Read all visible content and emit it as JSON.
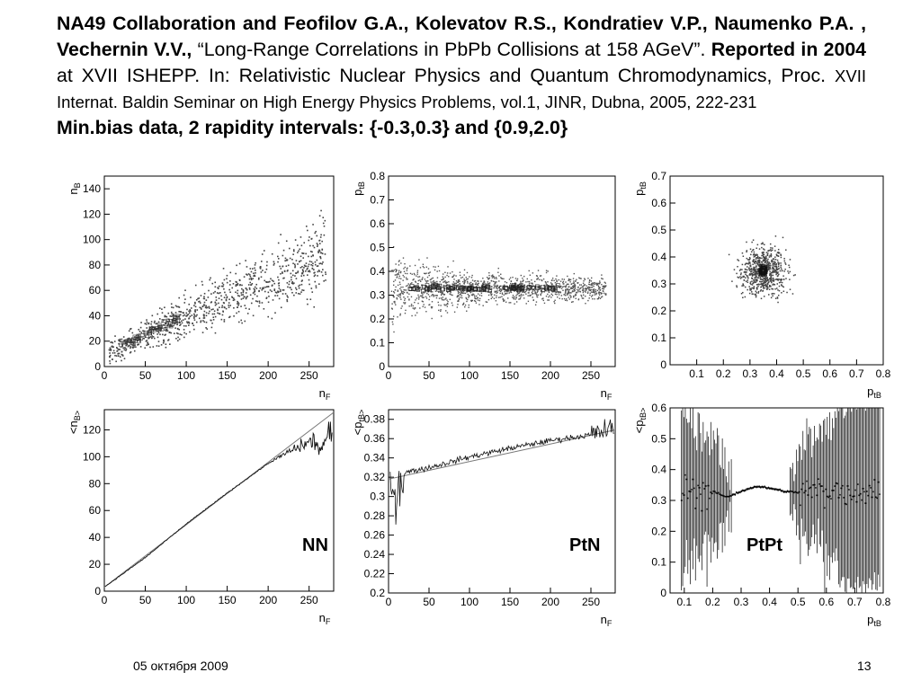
{
  "header": {
    "authors_line": "NA49 Collaboration and Feofilov G.A., Kolevatov R.S., Kondratiev V.P., Naumenko P.A. , Vechernin V.V.,",
    "title": "“Long-Range Correlations in PbPb Collisions at 158 AGeV”.",
    "reported": "Reported in 2004",
    "venue": "at XVII ISHEPP. In: Relativistic Nuclear Physics and Quantum Chromodynamics, Proc.",
    "proc_rest": "XVII Internat. Baldin Seminar on High Energy Physics Problems, vol.1, JINR, Dubna, 2005, 222-231",
    "data_line": "Min.bias data, 2 rapidity intervals: {-0.3,0.3} and {0.9,2.0}"
  },
  "footer": {
    "date": "05 октября 2009",
    "page": "13"
  },
  "panel_labels": {
    "nn": "NN",
    "ptn": "PtN",
    "ptpt": "PtPt"
  },
  "chart_data": [
    {
      "id": "c1",
      "type": "scatter",
      "xlabel": "n_F",
      "ylabel": "n_B",
      "xlim": [
        0,
        280
      ],
      "ylim": [
        0,
        150
      ],
      "xticks": [
        "0",
        "50",
        "100",
        "150",
        "200",
        "250"
      ],
      "yticks": [
        "0",
        "20",
        "40",
        "60",
        "80",
        "100",
        "120",
        "140"
      ],
      "trend": {
        "x": [
          0,
          270
        ],
        "y": [
          10,
          90
        ]
      }
    },
    {
      "id": "c2",
      "type": "scatter",
      "xlabel": "n_F",
      "ylabel": "p_tB",
      "xlim": [
        0,
        280
      ],
      "ylim": [
        0,
        0.8
      ],
      "xticks": [
        "0",
        "50",
        "100",
        "150",
        "200",
        "250"
      ],
      "yticks": [
        "0",
        "0.1",
        "0.2",
        "0.3",
        "0.4",
        "0.5",
        "0.6",
        "0.7",
        "0.8"
      ],
      "trend": {
        "x": [
          0,
          270
        ],
        "y": [
          0.33,
          0.33
        ]
      }
    },
    {
      "id": "c3",
      "type": "scatter",
      "xlabel": "p_tB",
      "ylabel": "p_tB",
      "xlim": [
        0,
        0.8
      ],
      "ylim": [
        0,
        0.7
      ],
      "xticks": [
        "0.1",
        "0.2",
        "0.3",
        "0.4",
        "0.5",
        "0.6",
        "0.7",
        "0.8"
      ],
      "yticks": [
        "0",
        "0.1",
        "0.2",
        "0.3",
        "0.4",
        "0.5",
        "0.6",
        "0.7"
      ],
      "center": {
        "x": 0.35,
        "y": 0.35
      }
    },
    {
      "id": "c4",
      "type": "line",
      "xlabel": "n_F",
      "ylabel": "<n_B>_nF",
      "xlim": [
        0,
        280
      ],
      "ylim": [
        0,
        135
      ],
      "xticks": [
        "0",
        "50",
        "100",
        "150",
        "200",
        "250"
      ],
      "yticks": [
        "0",
        "20",
        "40",
        "60",
        "80",
        "100",
        "120"
      ],
      "fit": {
        "x": [
          0,
          280
        ],
        "y": [
          3,
          133
        ]
      },
      "series": [
        {
          "x": [
            0,
            50,
            100,
            150,
            200,
            220,
            240,
            255,
            265,
            275
          ],
          "y": [
            3,
            25,
            50,
            73,
            95,
            102,
            108,
            112,
            105,
            118
          ]
        }
      ]
    },
    {
      "id": "c5",
      "type": "line",
      "xlabel": "n_F",
      "ylabel": "<p_tB>_nF",
      "xlim": [
        0,
        280
      ],
      "ylim": [
        0.2,
        0.39
      ],
      "xticks": [
        "0",
        "50",
        "100",
        "150",
        "200",
        "250"
      ],
      "yticks": [
        "0.2",
        "0.22",
        "0.24",
        "0.26",
        "0.28",
        "0.3",
        "0.32",
        "0.34",
        "0.36",
        "0.38"
      ],
      "fit": {
        "x": [
          0,
          280
        ],
        "y": [
          0.318,
          0.369
        ]
      },
      "series": [
        {
          "x": [
            5,
            20,
            50,
            100,
            150,
            200,
            250,
            275
          ],
          "y": [
            0.3,
            0.325,
            0.33,
            0.341,
            0.35,
            0.358,
            0.364,
            0.37
          ]
        }
      ]
    },
    {
      "id": "c6",
      "type": "line",
      "xlabel": "p_tB",
      "ylabel": "<p_tB>_pF",
      "xlim": [
        0.05,
        0.8
      ],
      "ylim": [
        0,
        0.6
      ],
      "xticks": [
        "0.1",
        "0.2",
        "0.3",
        "0.4",
        "0.5",
        "0.6",
        "0.7",
        "0.8"
      ],
      "yticks": [
        "0",
        "0.1",
        "0.2",
        "0.3",
        "0.4",
        "0.5",
        "0.6"
      ],
      "series": [
        {
          "x": [
            0.2,
            0.25,
            0.3,
            0.35,
            0.4,
            0.45,
            0.5
          ],
          "y": [
            0.33,
            0.31,
            0.33,
            0.345,
            0.34,
            0.33,
            0.325
          ]
        }
      ]
    }
  ]
}
